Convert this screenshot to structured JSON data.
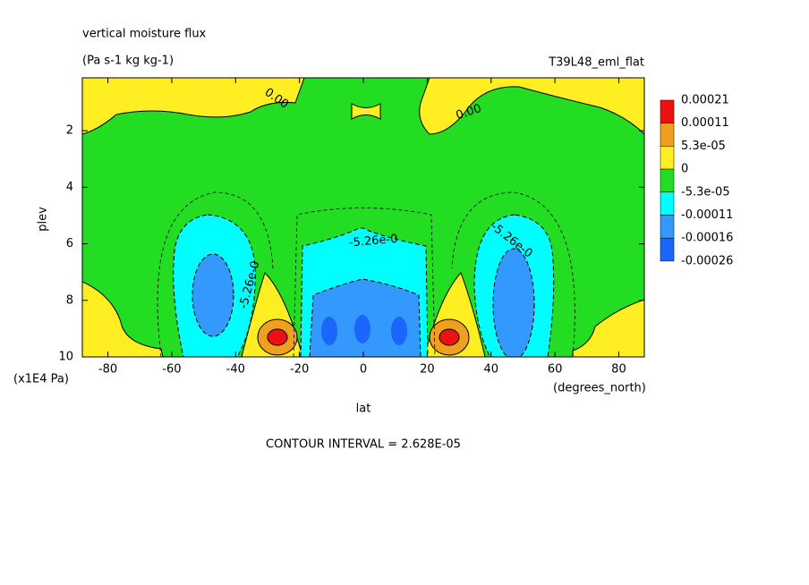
{
  "chart_data": {
    "type": "contour",
    "title": "vertical moisture flux",
    "subtitle": "(Pa s-1 kg kg-1)",
    "run_label": "T39L48_eml_flat",
    "x_label": "lat",
    "x_units": "(degrees_north)",
    "y_label": "plev",
    "y_units": "(x1E4 Pa)",
    "footer": "CONTOUR INTERVAL = 2.628E-05",
    "xlim": [
      -88,
      88
    ],
    "xticks": [
      -80,
      -60,
      -40,
      -20,
      0,
      20,
      40,
      60,
      80
    ],
    "ylim": [
      10,
      0.13
    ],
    "yticks": [
      2,
      4,
      6,
      8,
      10
    ],
    "contour_labels": [
      "0.00",
      "0.00",
      "-5.26e-0",
      "-5.26e-0",
      "-5.26e-0"
    ],
    "colorbar": {
      "levels": [
        0.00021,
        0.00011,
        {
          "value": 5.3e-05,
          "label": "5.3e-05"
        },
        0,
        {
          "value": -5.3e-05,
          "label": "-5.3e-05"
        },
        -0.00011,
        -0.00016,
        -0.00026
      ],
      "colors": [
        "#ee1111",
        "#f0a020",
        "#ffee22",
        "#22dd22",
        "#00ffff",
        "#3399ff",
        "#1a66ff"
      ]
    }
  }
}
